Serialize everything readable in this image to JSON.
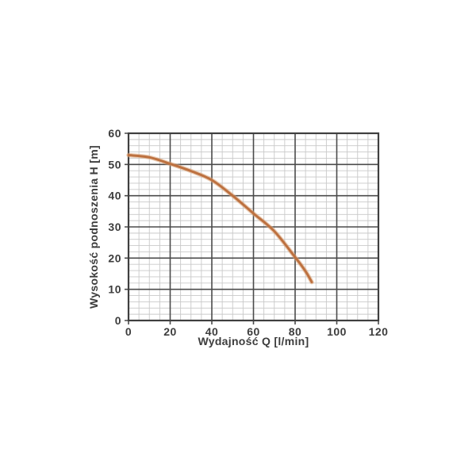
{
  "page": {
    "background_color": "#ffffff",
    "description": "Pump performance curve chart"
  },
  "chart_data": {
    "type": "line",
    "title": "",
    "xlabel": "Wydajność Q [l/min]",
    "ylabel": "Wysokość podnoszenia H [m]",
    "xlim": [
      0,
      120
    ],
    "ylim": [
      0,
      60
    ],
    "x_ticks": [
      0,
      20,
      40,
      60,
      80,
      100,
      120
    ],
    "y_ticks": [
      0,
      10,
      20,
      30,
      40,
      50,
      60
    ],
    "x_minor_step": 5,
    "y_minor_step": 2,
    "grid": "major+minor",
    "legend": "none",
    "series": [
      {
        "name": "pump-head-curve",
        "color": "#bd7140",
        "halo_color": "#dca87d",
        "points": [
          [
            0,
            53
          ],
          [
            10,
            52.3
          ],
          [
            20,
            50.2
          ],
          [
            30,
            47.9
          ],
          [
            40,
            45.0
          ],
          [
            50,
            40.0
          ],
          [
            60,
            34.3
          ],
          [
            70,
            28.6
          ],
          [
            80,
            20.3
          ],
          [
            85,
            15.8
          ],
          [
            88,
            12.3
          ]
        ]
      }
    ],
    "colors": {
      "grid_minor": "#c9c9c9",
      "grid_major": "#4b4b4b",
      "frame": "#3f3f3f",
      "text": "#3d3d3d"
    }
  }
}
